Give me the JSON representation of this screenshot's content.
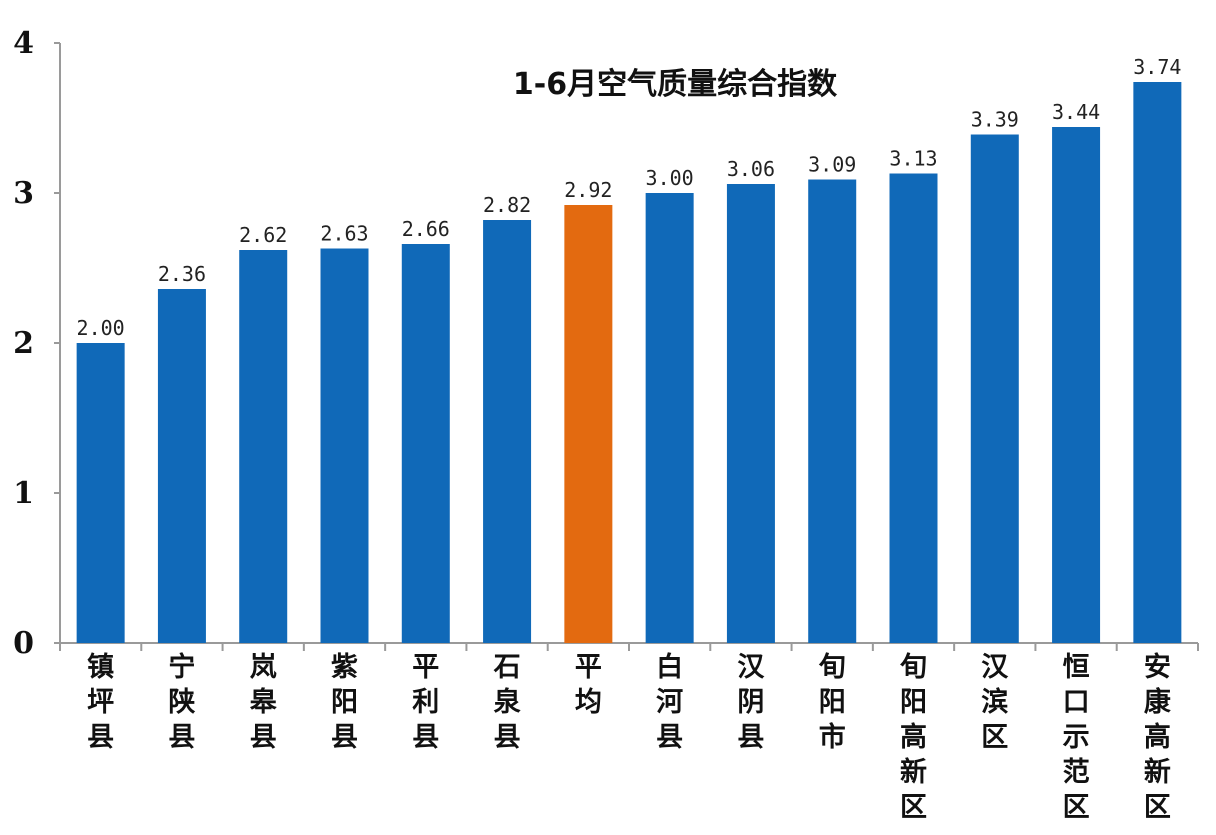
{
  "chart_data": {
    "type": "bar",
    "title": "1-6月空气质量综合指数",
    "categories": [
      "镇坪县",
      "宁陕县",
      "岚皋县",
      "紫阳县",
      "平利县",
      "石泉县",
      "平均",
      "白河县",
      "汉阴县",
      "旬阳市",
      "旬阳高新区",
      "汉滨区",
      "恒口示范区",
      "安康高新区"
    ],
    "values": [
      2.0,
      2.36,
      2.62,
      2.63,
      2.66,
      2.82,
      2.92,
      3.0,
      3.06,
      3.09,
      3.13,
      3.39,
      3.44,
      3.74
    ],
    "value_labels": [
      "2.00",
      "2.36",
      "2.62",
      "2.63",
      "2.66",
      "2.82",
      "2.92",
      "3.00",
      "3.06",
      "3.09",
      "3.13",
      "3.39",
      "3.44",
      "3.74"
    ],
    "highlight_category": "平均",
    "ylim": [
      0,
      4
    ],
    "yticks": [
      "0",
      "1",
      "2",
      "3",
      "4"
    ],
    "xlabel": "",
    "ylabel": "",
    "grid": false,
    "colors": {
      "bar": "#1069B8",
      "highlight": "#E36A10",
      "axis": "#9a9a9a"
    }
  }
}
